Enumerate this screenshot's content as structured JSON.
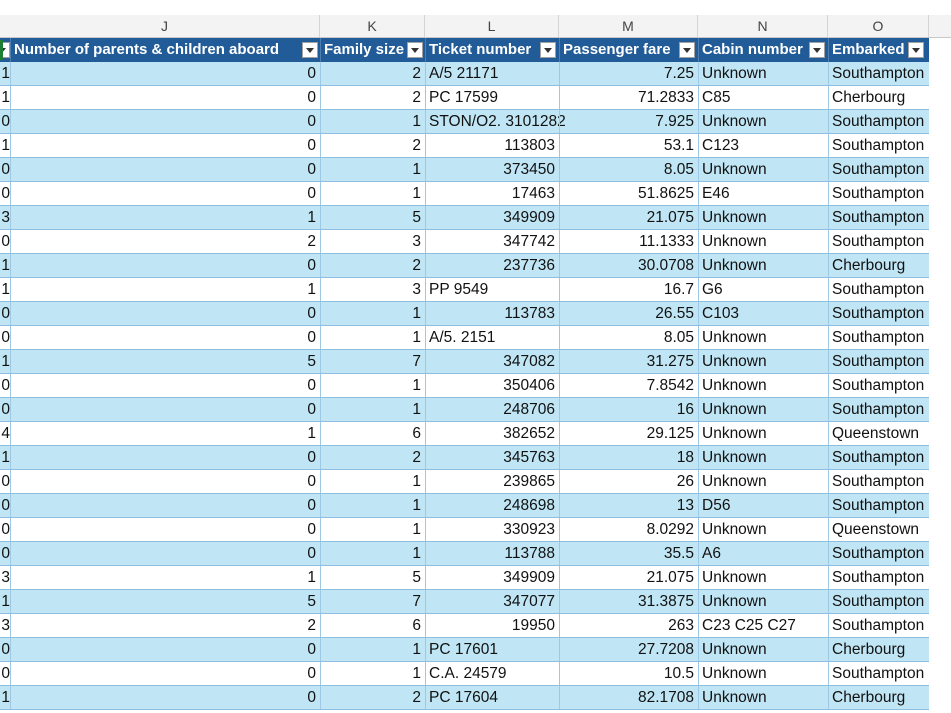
{
  "column_letters": [
    "J",
    "K",
    "L",
    "M",
    "N",
    "O"
  ],
  "table_header": {
    "col_i": "",
    "col_j": "Number of parents &  children aboard",
    "col_k": "Family size",
    "col_l": "Ticket number",
    "col_m": "Passenger fare",
    "col_n": "Cabin number",
    "col_o": "Embarked"
  },
  "rows": [
    {
      "i": "1",
      "j": "0",
      "k": "2",
      "l": "A/5 21171",
      "l_align": "l",
      "m": "7.25",
      "n": "Unknown",
      "o": "Southampton"
    },
    {
      "i": "1",
      "j": "0",
      "k": "2",
      "l": "PC 17599",
      "l_align": "l",
      "m": "71.2833",
      "n": "C85",
      "o": "Cherbourg"
    },
    {
      "i": "0",
      "j": "0",
      "k": "1",
      "l": "STON/O2. 3101282",
      "l_align": "l",
      "m": "7.925",
      "n": "Unknown",
      "o": "Southampton"
    },
    {
      "i": "1",
      "j": "0",
      "k": "2",
      "l": "113803",
      "l_align": "r",
      "m": "53.1",
      "n": "C123",
      "o": "Southampton"
    },
    {
      "i": "0",
      "j": "0",
      "k": "1",
      "l": "373450",
      "l_align": "r",
      "m": "8.05",
      "n": "Unknown",
      "o": "Southampton"
    },
    {
      "i": "0",
      "j": "0",
      "k": "1",
      "l": "17463",
      "l_align": "r",
      "m": "51.8625",
      "n": "E46",
      "o": "Southampton"
    },
    {
      "i": "3",
      "j": "1",
      "k": "5",
      "l": "349909",
      "l_align": "r",
      "m": "21.075",
      "n": "Unknown",
      "o": "Southampton"
    },
    {
      "i": "0",
      "j": "2",
      "k": "3",
      "l": "347742",
      "l_align": "r",
      "m": "11.1333",
      "n": "Unknown",
      "o": "Southampton"
    },
    {
      "i": "1",
      "j": "0",
      "k": "2",
      "l": "237736",
      "l_align": "r",
      "m": "30.0708",
      "n": "Unknown",
      "o": "Cherbourg"
    },
    {
      "i": "1",
      "j": "1",
      "k": "3",
      "l": "PP 9549",
      "l_align": "l",
      "m": "16.7",
      "n": "G6",
      "o": "Southampton"
    },
    {
      "i": "0",
      "j": "0",
      "k": "1",
      "l": "113783",
      "l_align": "r",
      "m": "26.55",
      "n": "C103",
      "o": "Southampton"
    },
    {
      "i": "0",
      "j": "0",
      "k": "1",
      "l": "A/5. 2151",
      "l_align": "l",
      "m": "8.05",
      "n": "Unknown",
      "o": "Southampton"
    },
    {
      "i": "1",
      "j": "5",
      "k": "7",
      "l": "347082",
      "l_align": "r",
      "m": "31.275",
      "n": "Unknown",
      "o": "Southampton"
    },
    {
      "i": "0",
      "j": "0",
      "k": "1",
      "l": "350406",
      "l_align": "r",
      "m": "7.8542",
      "n": "Unknown",
      "o": "Southampton"
    },
    {
      "i": "0",
      "j": "0",
      "k": "1",
      "l": "248706",
      "l_align": "r",
      "m": "16",
      "n": "Unknown",
      "o": "Southampton"
    },
    {
      "i": "4",
      "j": "1",
      "k": "6",
      "l": "382652",
      "l_align": "r",
      "m": "29.125",
      "n": "Unknown",
      "o": "Queenstown"
    },
    {
      "i": "1",
      "j": "0",
      "k": "2",
      "l": "345763",
      "l_align": "r",
      "m": "18",
      "n": "Unknown",
      "o": "Southampton"
    },
    {
      "i": "0",
      "j": "0",
      "k": "1",
      "l": "239865",
      "l_align": "r",
      "m": "26",
      "n": "Unknown",
      "o": "Southampton"
    },
    {
      "i": "0",
      "j": "0",
      "k": "1",
      "l": "248698",
      "l_align": "r",
      "m": "13",
      "n": "D56",
      "o": "Southampton"
    },
    {
      "i": "0",
      "j": "0",
      "k": "1",
      "l": "330923",
      "l_align": "r",
      "m": "8.0292",
      "n": "Unknown",
      "o": "Queenstown"
    },
    {
      "i": "0",
      "j": "0",
      "k": "1",
      "l": "113788",
      "l_align": "r",
      "m": "35.5",
      "n": "A6",
      "o": "Southampton"
    },
    {
      "i": "3",
      "j": "1",
      "k": "5",
      "l": "349909",
      "l_align": "r",
      "m": "21.075",
      "n": "Unknown",
      "o": "Southampton"
    },
    {
      "i": "1",
      "j": "5",
      "k": "7",
      "l": "347077",
      "l_align": "r",
      "m": "31.3875",
      "n": "Unknown",
      "o": "Southampton"
    },
    {
      "i": "3",
      "j": "2",
      "k": "6",
      "l": "19950",
      "l_align": "r",
      "m": "263",
      "n": "C23 C25 C27",
      "o": "Southampton"
    },
    {
      "i": "0",
      "j": "0",
      "k": "1",
      "l": "PC 17601",
      "l_align": "l",
      "m": "27.7208",
      "n": "Unknown",
      "o": "Cherbourg"
    },
    {
      "i": "0",
      "j": "0",
      "k": "1",
      "l": "C.A. 24579",
      "l_align": "l",
      "m": "10.5",
      "n": "Unknown",
      "o": "Southampton"
    },
    {
      "i": "1",
      "j": "0",
      "k": "2",
      "l": "PC 17604",
      "l_align": "l",
      "m": "82.1708",
      "n": "Unknown",
      "o": "Cherbourg"
    }
  ],
  "colors": {
    "header": "#215c98",
    "band": "#c0e6f5",
    "plain": "#ffffff"
  }
}
